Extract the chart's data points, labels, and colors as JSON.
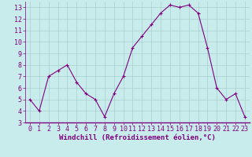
{
  "x": [
    0,
    1,
    2,
    3,
    4,
    5,
    6,
    7,
    8,
    9,
    10,
    11,
    12,
    13,
    14,
    15,
    16,
    17,
    18,
    19,
    20,
    21,
    22,
    23
  ],
  "y": [
    5.0,
    4.0,
    7.0,
    7.5,
    8.0,
    6.5,
    5.5,
    5.0,
    3.5,
    5.5,
    7.0,
    9.5,
    10.5,
    11.5,
    12.5,
    13.2,
    13.0,
    13.2,
    12.5,
    9.5,
    6.0,
    5.0,
    5.5,
    3.5
  ],
  "line_color": "#800080",
  "marker": "+",
  "bg_color": "#c8ecec",
  "grid_color": "#a8cece",
  "xlabel": "Windchill (Refroidissement éolien,°C)",
  "xlim": [
    -0.5,
    23.5
  ],
  "ylim": [
    3,
    13.5
  ],
  "yticks": [
    3,
    4,
    5,
    6,
    7,
    8,
    9,
    10,
    11,
    12,
    13
  ],
  "xticks": [
    0,
    1,
    2,
    3,
    4,
    5,
    6,
    7,
    8,
    9,
    10,
    11,
    12,
    13,
    14,
    15,
    16,
    17,
    18,
    19,
    20,
    21,
    22,
    23
  ],
  "line_color_spine": "#800080",
  "tick_color": "#800080",
  "font_size": 6,
  "xlabel_fontsize": 6.5
}
